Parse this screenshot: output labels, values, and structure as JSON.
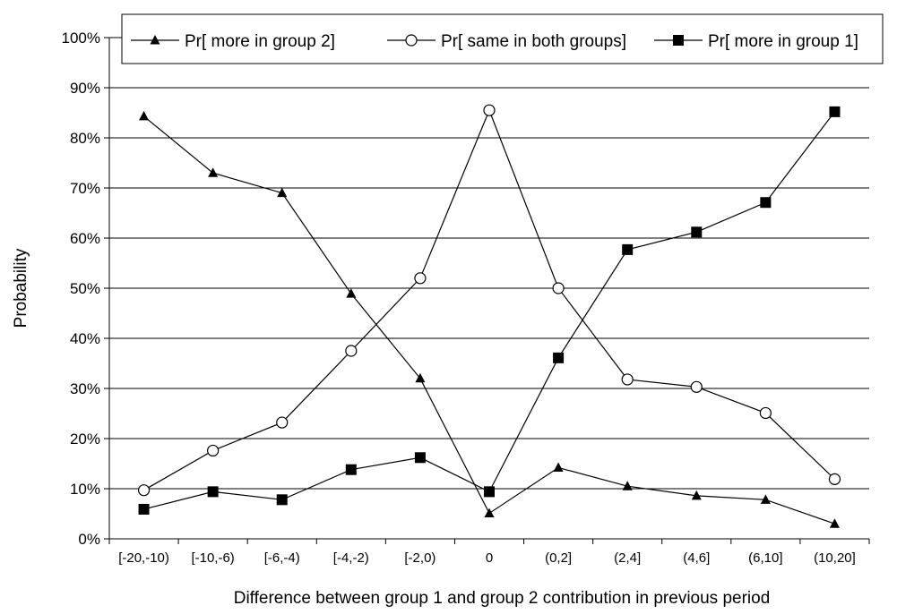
{
  "chart_data": {
    "type": "line",
    "title": "",
    "xlabel": "Difference between group 1 and group 2 contribution in previous period",
    "ylabel": "Probability",
    "categories": [
      "[-20,-10)",
      "[-10,-6)",
      "[-6,-4)",
      "[-4,-2)",
      "[-2,0)",
      "0",
      "(0,2]",
      "(2,4]",
      "(4,6]",
      "(6,10]",
      "(10,20]"
    ],
    "ylim": [
      0,
      100
    ],
    "yticks": [
      "0%",
      "10%",
      "20%",
      "30%",
      "40%",
      "50%",
      "60%",
      "70%",
      "80%",
      "90%",
      "100%"
    ],
    "grid": true,
    "legend_position": "top",
    "series": [
      {
        "name": "Pr[ more in group 2]",
        "marker": "triangle",
        "color": "#000000",
        "values": [
          84.3,
          73.0,
          69.0,
          48.9,
          32.0,
          5.1,
          14.2,
          10.5,
          8.6,
          7.8,
          3.0
        ]
      },
      {
        "name": "Pr[ same in both groups]",
        "marker": "open-circle",
        "color": "#000000",
        "values": [
          9.7,
          17.6,
          23.2,
          37.5,
          52.0,
          85.5,
          50.0,
          31.8,
          30.3,
          25.1,
          11.9
        ]
      },
      {
        "name": "Pr[ more in group 1]",
        "marker": "square",
        "color": "#000000",
        "values": [
          5.9,
          9.4,
          7.8,
          13.8,
          16.2,
          9.4,
          36.1,
          57.7,
          61.2,
          67.1,
          85.2
        ]
      }
    ]
  }
}
